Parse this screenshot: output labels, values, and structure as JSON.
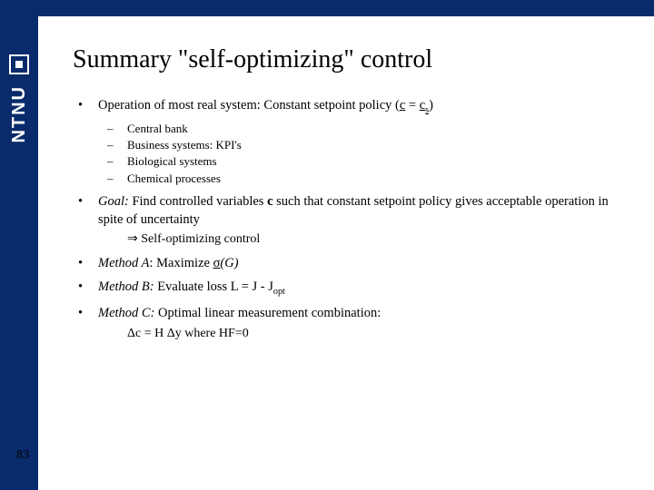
{
  "colors": {
    "brand": "#0a2b6b",
    "background": "#ffffff",
    "text": "#000000"
  },
  "sidebar": {
    "org": "NTNU"
  },
  "slide": {
    "title": "Summary \"self-optimizing\" control",
    "page_number": "83",
    "bullets": {
      "b1_prefix": "Operation of most real system: Constant setpoint policy (",
      "b1_c": "c",
      "b1_eq": " = ",
      "b1_cs_c": "c",
      "b1_cs_s": "s",
      "b1_suffix": ")",
      "sub1": "Central bank",
      "sub2": "Business systems: KPI's",
      "sub3": "Biological systems",
      "sub4": "Chemical processes",
      "b2_prefix": "Goal:",
      "b2_mid1": " Find controlled variables ",
      "b2_c": "c",
      "b2_mid2": " such that constant setpoint policy gives acceptable operation in spite of uncertainty",
      "b2_indent": "⇒ Self-optimizing control",
      "b3_a": "Method A",
      "b3_mid": ": Maximize ",
      "b3_sig_pre": "σ",
      "b3_sig_arg": "(G)",
      "b4_a": "Method B:",
      "b4_mid": " Evaluate loss L = J - J",
      "b4_opt": "opt",
      "b5_a": "Method C:",
      "b5_mid": " Optimal linear measurement combination:",
      "b5_indent": "Δc = H Δy where HF=0"
    }
  }
}
